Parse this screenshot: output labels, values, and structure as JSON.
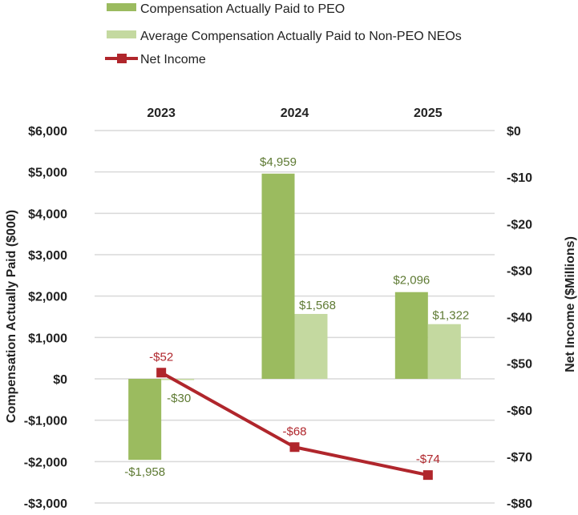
{
  "chart_data": {
    "type": "bar",
    "title": "",
    "categories": [
      "2023",
      "2024",
      "2025"
    ],
    "series": [
      {
        "name": "Compensation Actually Paid to PEO",
        "type": "bar",
        "axis": "left",
        "color": "#9bbb5f",
        "values": [
          -1958,
          4959,
          2096
        ],
        "labels": [
          "-$1,958",
          "$4,959",
          "$2,096"
        ]
      },
      {
        "name": "Average Compensation Actually Paid to Non-PEO NEOs",
        "type": "bar",
        "axis": "left",
        "color": "#c4d9a0",
        "values": [
          -30,
          1568,
          1322
        ],
        "labels": [
          "-$30",
          "$1,568",
          "$1,322"
        ]
      },
      {
        "name": "Net Income",
        "type": "line",
        "axis": "right",
        "color": "#b0262c",
        "values": [
          -52,
          -68,
          -74
        ],
        "labels": [
          "-$52",
          "-$68",
          "-$74"
        ]
      }
    ],
    "left_axis": {
      "label": "Compensation Actually Paid ($000)",
      "range": [
        -3000,
        6000
      ],
      "ticks": [
        6000,
        5000,
        4000,
        3000,
        2000,
        1000,
        0,
        -1000,
        -2000,
        -3000
      ],
      "tick_labels": [
        "$6,000",
        "$5,000",
        "$4,000",
        "$3,000",
        "$2,000",
        "$1,000",
        "$0",
        "-$1,000",
        "-$2,000",
        "-$3,000"
      ]
    },
    "right_axis": {
      "label": "Net Income ($Millions)",
      "range": [
        -80,
        0
      ],
      "ticks": [
        0,
        -10,
        -20,
        -30,
        -40,
        -50,
        -60,
        -70,
        -80
      ],
      "tick_labels": [
        "$0",
        "-$10",
        "-$20",
        "-$30",
        "-$40",
        "-$50",
        "-$60",
        "-$70",
        "-$80"
      ]
    },
    "grid": true,
    "legend_position": "top",
    "category_axis_position": "top"
  }
}
